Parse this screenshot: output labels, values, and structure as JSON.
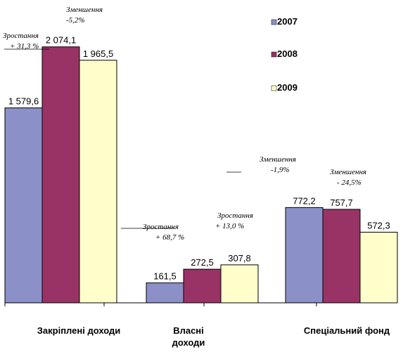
{
  "chart_data": {
    "type": "bar",
    "categories": [
      "Закріплені доходи",
      "Власні доходи",
      "Спеціальний фонд"
    ],
    "category_lines": [
      [
        "Закріплені доходи"
      ],
      [
        "Власні",
        "доходи"
      ],
      [
        "Спеціальний фонд"
      ]
    ],
    "series": [
      {
        "name": "2007",
        "values": [
          1579.6,
          161.5,
          772.2
        ],
        "labels": [
          "1 579,6",
          "161,5",
          "772,2"
        ]
      },
      {
        "name": "2008",
        "values": [
          2074.1,
          272.5,
          757.7
        ],
        "labels": [
          "2 074,1",
          "272,5",
          "757,7"
        ]
      },
      {
        "name": "2009",
        "values": [
          1965.5,
          307.8,
          572.3
        ],
        "labels": [
          "1 965,5",
          "307,8",
          "572,3"
        ]
      }
    ],
    "colors": {
      "2007": "#8c90c8",
      "2008": "#993366",
      "2009": "#ffffcc"
    },
    "ylim": [
      0,
      2300
    ],
    "grid": false,
    "legend_position": "top-right",
    "annotations": [
      {
        "lines": [
          "Зменшення",
          "-5,2%"
        ]
      },
      {
        "lines": [
          "Зростання",
          "+ 31,3 %"
        ]
      },
      {
        "lines": [
          "Зростання",
          "+ 68,7 %"
        ]
      },
      {
        "lines": [
          "Зростання",
          "+ 13,0 %"
        ]
      },
      {
        "lines": [
          "Зменшення",
          "-1,9%"
        ]
      },
      {
        "lines": [
          "Зменшення",
          "- 24,5%"
        ]
      }
    ]
  }
}
